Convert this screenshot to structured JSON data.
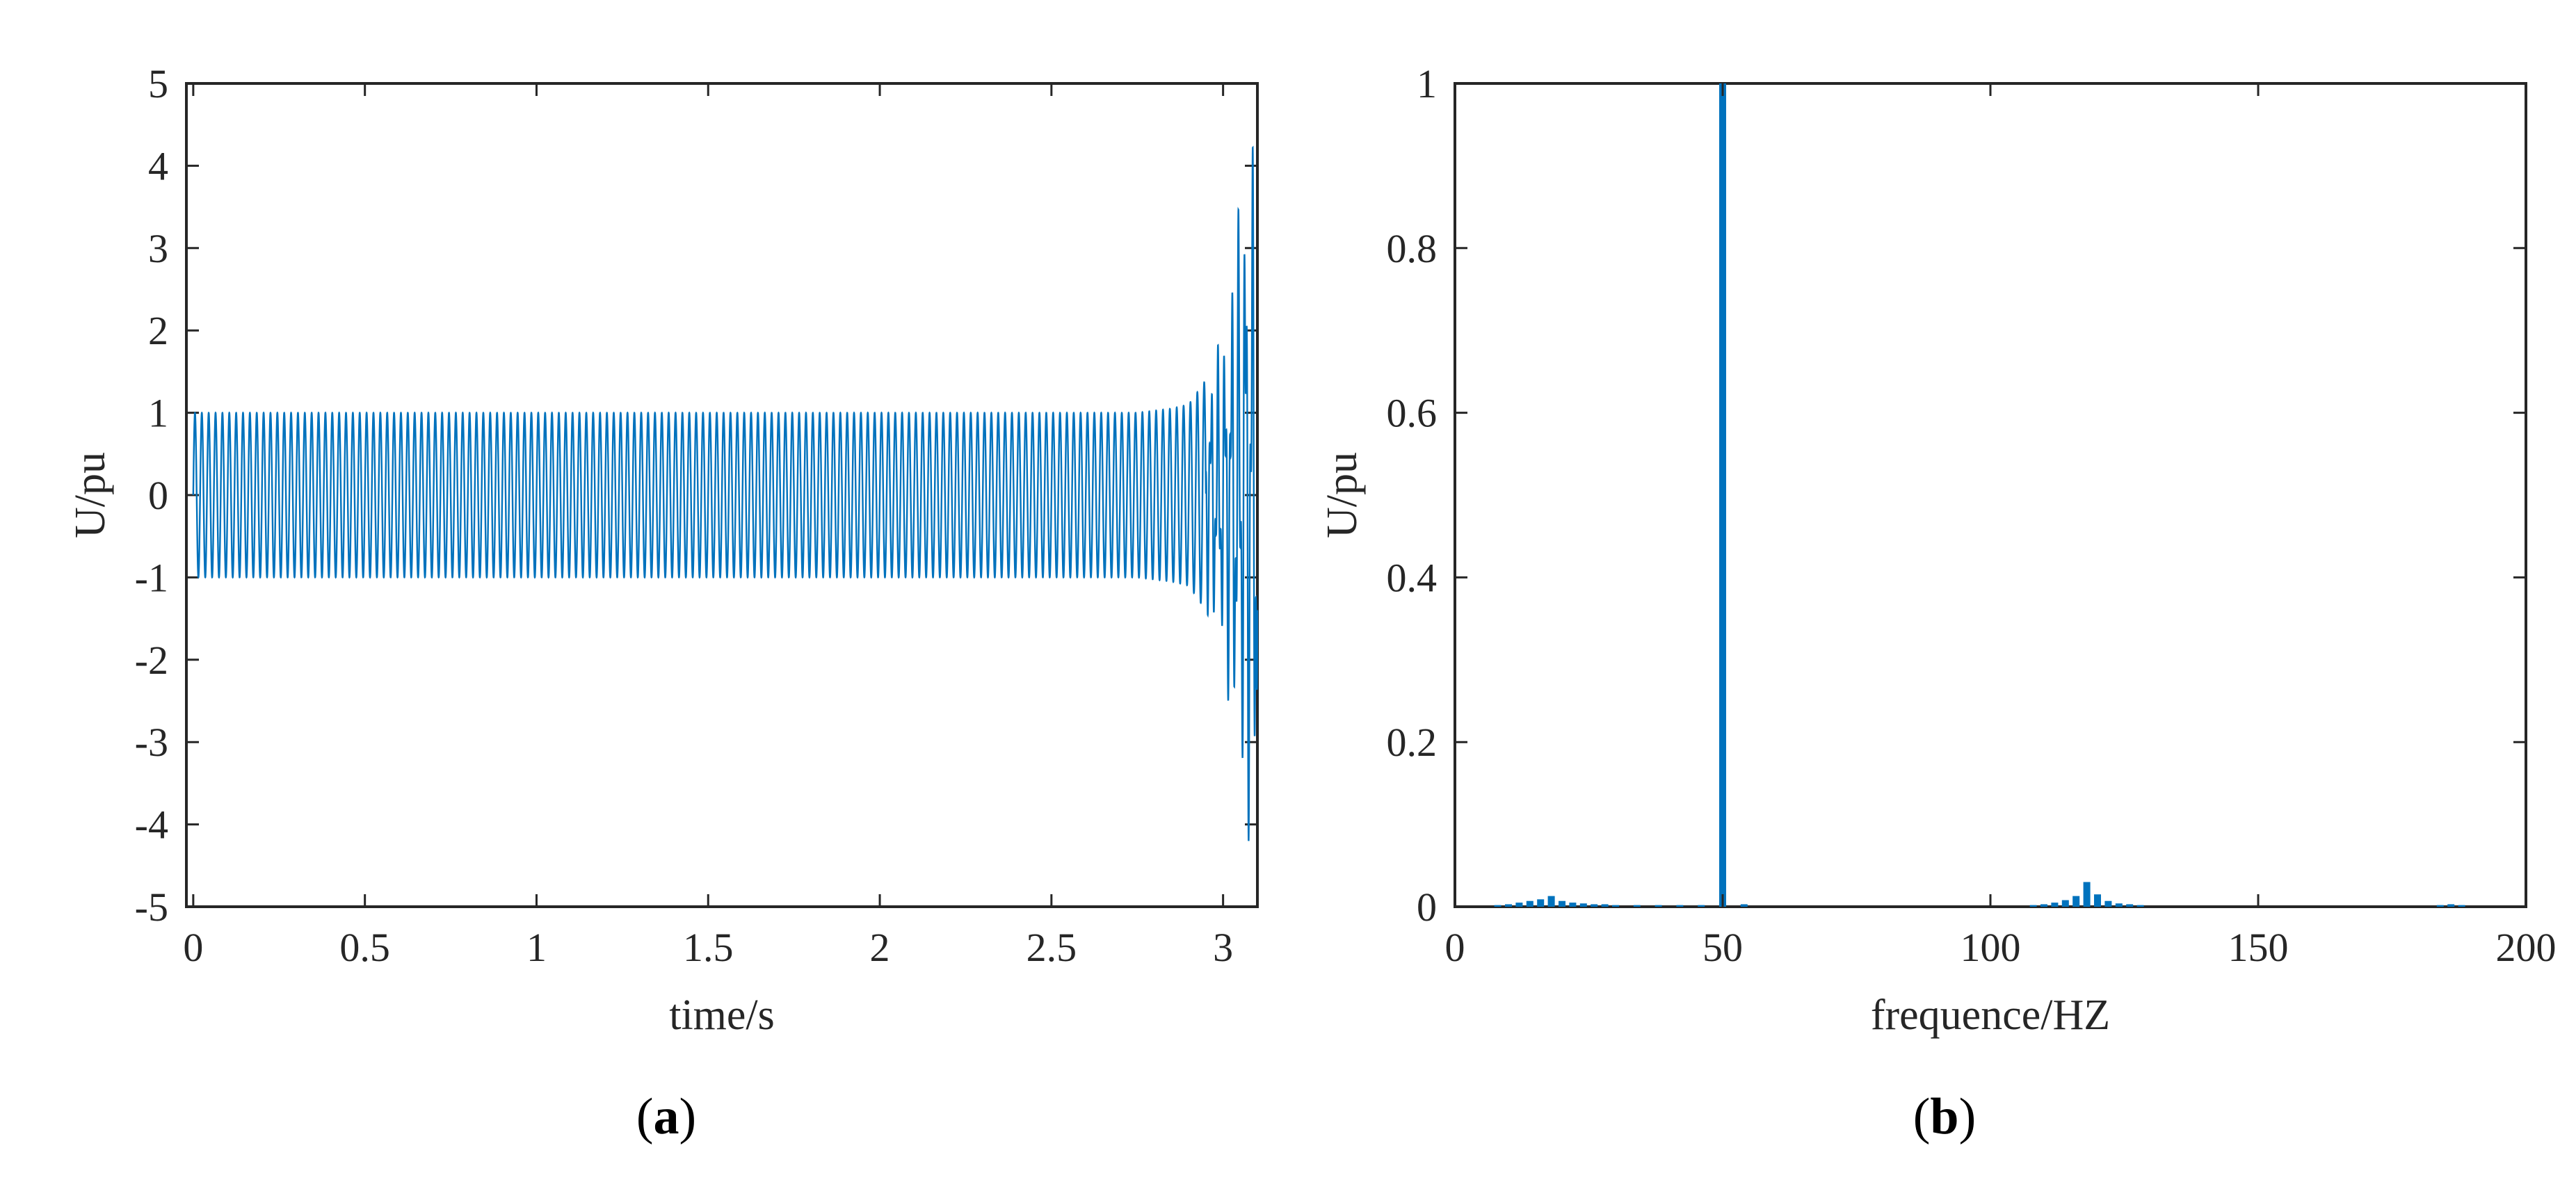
{
  "colors": {
    "series": "#0072BD",
    "axes": "#262626"
  },
  "chart_data": [
    {
      "type": "line",
      "panel": "(a)",
      "caption_letter": "a",
      "xlabel": "time/s",
      "ylabel": "U/pu",
      "xlim": [
        -0.02,
        3.1
      ],
      "ylim": [
        -5,
        5
      ],
      "xticks": [
        0,
        0.5,
        1,
        1.5,
        2,
        2.5,
        3
      ],
      "xtick_labels": [
        "0",
        "0.5",
        "1",
        "1.5",
        "2",
        "2.5",
        "3"
      ],
      "yticks": [
        -5,
        -4,
        -3,
        -2,
        -1,
        0,
        1,
        2,
        3,
        4,
        5
      ],
      "ytick_labels": [
        "-5",
        "-4",
        "-3",
        "-2",
        "-1",
        "0",
        "1",
        "2",
        "3",
        "4",
        "5"
      ],
      "grid": false,
      "signal": {
        "frequency_hz": 50,
        "interharmonic_hz": 118
      },
      "series": [
        {
          "envelope": {
            "t": [
              0,
              2.75,
              2.85,
              2.9,
              2.95,
              3.0,
              3.03,
              3.06,
              3.08,
              3.1
            ],
            "upper": [
              1.0,
              1.0,
              1.05,
              1.1,
              1.4,
              2.0,
              3.0,
              4.0,
              4.5,
              4.8
            ],
            "lower": [
              -1.0,
              -1.0,
              -1.05,
              -1.1,
              -1.4,
              -2.0,
              -3.0,
              -3.7,
              -4.5,
              -4.5
            ]
          }
        }
      ]
    },
    {
      "type": "bar",
      "panel": "(b)",
      "caption_letter": "b",
      "xlabel": "frequence/HZ",
      "ylabel": "U/pu",
      "xlim": [
        0,
        200
      ],
      "ylim": [
        0,
        1
      ],
      "xticks": [
        0,
        50,
        100,
        150,
        200
      ],
      "xtick_labels": [
        "0",
        "50",
        "100",
        "150",
        "200"
      ],
      "yticks": [
        0,
        0.2,
        0.4,
        0.6,
        0.8,
        1
      ],
      "ytick_labels": [
        "0",
        "0.2",
        "0.4",
        "0.6",
        "0.8",
        "1"
      ],
      "grid": false,
      "x": [
        8,
        10,
        12,
        14,
        16,
        18,
        20,
        22,
        24,
        26,
        28,
        30,
        34,
        38,
        42,
        46,
        50,
        54,
        108,
        110,
        112,
        114,
        116,
        118,
        120,
        122,
        124,
        126,
        128,
        184,
        186,
        188
      ],
      "values": [
        0.002,
        0.003,
        0.005,
        0.007,
        0.009,
        0.013,
        0.007,
        0.005,
        0.004,
        0.003,
        0.003,
        0.002,
        0.002,
        0.002,
        0.002,
        0.002,
        1.0,
        0.003,
        0.002,
        0.003,
        0.005,
        0.008,
        0.013,
        0.03,
        0.015,
        0.007,
        0.004,
        0.003,
        0.002,
        0.002,
        0.003,
        0.002
      ]
    }
  ]
}
